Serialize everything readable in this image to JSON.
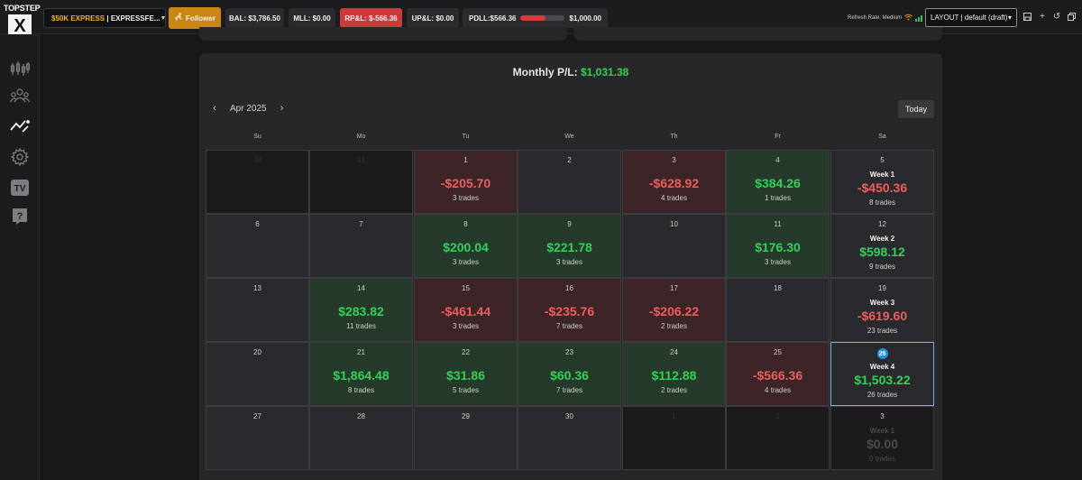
{
  "logo": {
    "brand": "TOPSTEP",
    "mark": "X"
  },
  "topbar": {
    "account_name": "$50K EXPRESS",
    "account_id": "| EXPRESSFE...",
    "follower_label": "Follower",
    "bal": "BAL: $3,786.50",
    "mll": "MLL: $0.00",
    "rpl": "RP&L: $-566.36",
    "upl": "UP&L: $0.00",
    "pdll_label": "PDLL:$566.36",
    "pdll_limit": "$1,000.00",
    "pdll_fill_fraction": 0.566,
    "refresh_rate": "Refresh Rate: Medium",
    "layout": "LAYOUT | default (draft)"
  },
  "sidebar": {
    "items": [
      {
        "name": "chart-icon"
      },
      {
        "name": "users-icon"
      },
      {
        "name": "trades-icon"
      },
      {
        "name": "gear-icon"
      },
      {
        "name": "tv-icon",
        "label": "TV"
      },
      {
        "name": "help-icon",
        "label": "?"
      }
    ]
  },
  "calendar": {
    "monthly_label": "Monthly P/L:",
    "monthly_value": "$1,031.38",
    "month": "Apr 2025",
    "today_label": "Today",
    "weekdays": [
      "Su",
      "Mo",
      "Tu",
      "We",
      "Th",
      "Fr",
      "Sa"
    ],
    "weeks": [
      [
        {
          "day": "30",
          "kind": "dim"
        },
        {
          "day": "31",
          "kind": "dim"
        },
        {
          "day": "1",
          "kind": "red",
          "amount": "-$205.70",
          "trades": "3 trades"
        },
        {
          "day": "2",
          "kind": "gap"
        },
        {
          "day": "3",
          "kind": "red",
          "amount": "-$628.92",
          "trades": "4 trades"
        },
        {
          "day": "4",
          "kind": "green",
          "amount": "$384.26",
          "trades": "1 trades"
        },
        {
          "day": "5",
          "kind": "wk",
          "week": "Week 1",
          "amount": "-$450.36",
          "trades": "8 trades",
          "sign": "neg"
        }
      ],
      [
        {
          "day": "6",
          "kind": "gap"
        },
        {
          "day": "7",
          "kind": "gap"
        },
        {
          "day": "8",
          "kind": "green",
          "amount": "$200.04",
          "trades": "3 trades"
        },
        {
          "day": "9",
          "kind": "green",
          "amount": "$221.78",
          "trades": "3 trades"
        },
        {
          "day": "10",
          "kind": "gap"
        },
        {
          "day": "11",
          "kind": "green",
          "amount": "$176.30",
          "trades": "3 trades"
        },
        {
          "day": "12",
          "kind": "wk",
          "week": "Week 2",
          "amount": "$598.12",
          "trades": "9 trades",
          "sign": "pos"
        }
      ],
      [
        {
          "day": "13",
          "kind": "gap"
        },
        {
          "day": "14",
          "kind": "green",
          "amount": "$283.82",
          "trades": "11 trades"
        },
        {
          "day": "15",
          "kind": "red",
          "amount": "-$461.44",
          "trades": "3 trades"
        },
        {
          "day": "16",
          "kind": "red",
          "amount": "-$235.76",
          "trades": "7 trades"
        },
        {
          "day": "17",
          "kind": "red",
          "amount": "-$206.22",
          "trades": "2 trades"
        },
        {
          "day": "18",
          "kind": "gap"
        },
        {
          "day": "19",
          "kind": "wk",
          "week": "Week 3",
          "amount": "-$619.60",
          "trades": "23 trades",
          "sign": "neg"
        }
      ],
      [
        {
          "day": "20",
          "kind": "gap"
        },
        {
          "day": "21",
          "kind": "green",
          "amount": "$1,864.48",
          "trades": "8 trades"
        },
        {
          "day": "22",
          "kind": "green",
          "amount": "$31.86",
          "trades": "5 trades"
        },
        {
          "day": "23",
          "kind": "green",
          "amount": "$60.36",
          "trades": "7 trades"
        },
        {
          "day": "24",
          "kind": "green",
          "amount": "$112.88",
          "trades": "2 trades"
        },
        {
          "day": "25",
          "kind": "red",
          "amount": "-$566.36",
          "trades": "4 trades"
        },
        {
          "day": "26",
          "kind": "wk",
          "week": "Week 4",
          "amount": "$1,503.22",
          "trades": "26 trades",
          "sign": "pos",
          "today": true
        }
      ],
      [
        {
          "day": "27",
          "kind": "gap"
        },
        {
          "day": "28",
          "kind": "gap"
        },
        {
          "day": "29",
          "kind": "gap"
        },
        {
          "day": "30",
          "kind": "gap"
        },
        {
          "day": "1",
          "kind": "dim"
        },
        {
          "day": "2",
          "kind": "dim"
        },
        {
          "day": "3",
          "kind": "wk-faded",
          "week": "Week 1",
          "amount": "$0.00",
          "trades": "0 trades"
        }
      ]
    ]
  },
  "colors": {
    "positive": "#34d058",
    "negative": "#f05d5d",
    "accent": "#c98612",
    "today": "#1e90d8"
  }
}
